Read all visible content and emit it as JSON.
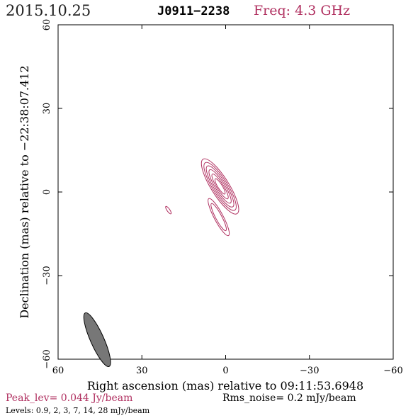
{
  "header": {
    "date": "2015.10.25",
    "source": "J0911−2238",
    "frequency": "Freq: 4.3 GHz"
  },
  "footer": {
    "peak": "Peak_lev=  0.044 Jy/beam",
    "rms": "Rms_noise=   0.2 mJy/beam",
    "levels": "Levels: 0.9,    2,    3,    7,   14,   28 mJy/beam"
  },
  "colors": {
    "contour": "#b03060",
    "beam_fill": "#777777",
    "axis": "#000000"
  },
  "chart_data": {
    "type": "contour",
    "xlabel": "Right ascension (mas) relative to 09:11:53.6948",
    "ylabel": "Declination (mas) relative to −22:38:07.412",
    "xlim": [
      60,
      -60
    ],
    "ylim": [
      -60,
      60
    ],
    "x_ticks": [
      60,
      30,
      0,
      -30,
      -60
    ],
    "y_ticks": [
      60,
      30,
      0,
      -30,
      -60
    ],
    "x_tick_labels": [
      "60",
      "30",
      "0",
      "−30",
      "−60"
    ],
    "y_tick_labels": [
      "60",
      "30",
      "0",
      "−30",
      "−60"
    ],
    "levels_mJy": [
      0.9,
      2,
      3,
      7,
      14,
      28
    ],
    "peak_Jy_per_beam": 0.044,
    "rms_mJy_per_beam": 0.2,
    "components": [
      {
        "x": 2,
        "y": 2,
        "rx": [
          11.5,
          10.0,
          8.6,
          7.0,
          5.2,
          3.2
        ],
        "ry": [
          3.2,
          2.7,
          2.2,
          1.7,
          1.2,
          0.8
        ],
        "pa_deg": 58
      },
      {
        "x": 2.5,
        "y": -9,
        "rx": [
          7.5,
          5.5
        ],
        "ry": [
          1.6,
          1.1
        ],
        "pa_deg": 62
      }
    ],
    "isolated": [
      {
        "x": 20.5,
        "y": -6.5,
        "rx": 1.6,
        "ry": 0.5,
        "pa_deg": 55
      }
    ],
    "beam": {
      "x": 46,
      "y": -53,
      "major": 10.5,
      "minor": 2.4,
      "pa_deg": 66
    }
  }
}
